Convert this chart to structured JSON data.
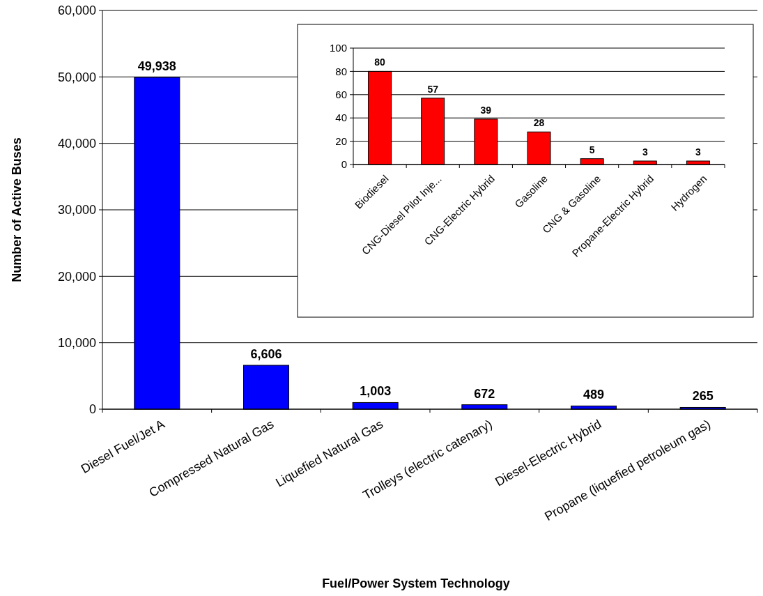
{
  "chart_data": [
    {
      "type": "bar",
      "xlabel": "Fuel/Power System Technology",
      "ylabel": "Number of Active Buses",
      "categories": [
        "Diesel Fuel/Jet A",
        "Compressed Natural Gas",
        "Liquefied Natural Gas",
        "Trolleys (electric catenary)",
        "Diesel-Electric Hybrid",
        "Propane (liquefied petroleum gas)"
      ],
      "values": [
        49938,
        6606,
        1003,
        672,
        489,
        265
      ],
      "color": "#0000ff",
      "ylim": [
        0,
        60000
      ],
      "yticks": [
        {
          "value": 0,
          "label": "0"
        },
        {
          "value": 10000,
          "label": "10,000"
        },
        {
          "value": 20000,
          "label": "20,000"
        },
        {
          "value": 30000,
          "label": "30,000"
        },
        {
          "value": 40000,
          "label": "40,000"
        },
        {
          "value": 50000,
          "label": "50,000"
        },
        {
          "value": 60000,
          "label": "60,000"
        }
      ],
      "grid": "y",
      "value_labels": [
        "49,938",
        "6,606",
        "1,003",
        "672",
        "489",
        "265"
      ]
    },
    {
      "type": "bar",
      "categories": [
        "Biodiesel",
        "CNG-Diesel Pilot Inje...",
        "CNG-Electric Hybrid",
        "Gasoline",
        "CNG & Gasoline",
        "Propane-Electric Hybrid",
        "Hydrogen"
      ],
      "values": [
        80,
        57,
        39,
        28,
        5,
        3,
        3
      ],
      "color": "#ff0000",
      "ylim": [
        0,
        100
      ],
      "yticks": [
        0,
        20,
        40,
        60,
        80,
        100
      ],
      "grid": "y",
      "data_labels": true
    }
  ]
}
